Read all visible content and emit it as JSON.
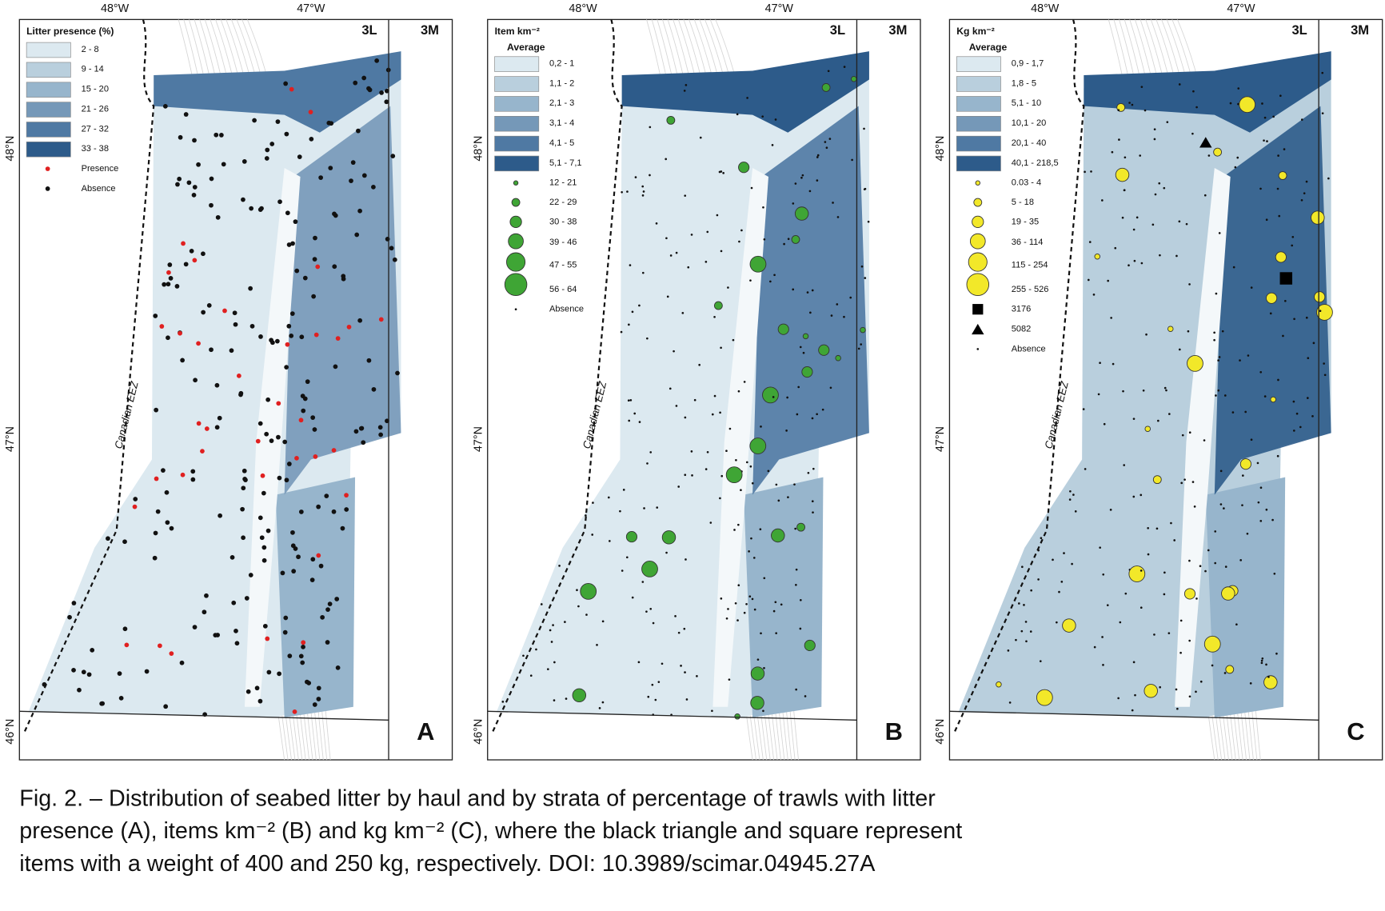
{
  "axes": {
    "lon": [
      "48°W",
      "47°W"
    ],
    "lat": [
      "48°N",
      "47°N",
      "46°N"
    ]
  },
  "zones": [
    "3L",
    "3M"
  ],
  "eez_label": "Canadian EEZ",
  "panels": [
    {
      "label": "A",
      "legend_title": "Litter presence (%)",
      "strata": [
        "2 - 8",
        "9 - 14",
        "15 - 20",
        "21 - 26",
        "27 - 32",
        "33 - 38"
      ],
      "symbols": [
        {
          "label": "Presence",
          "shape": "dot",
          "color": "#e02020"
        },
        {
          "label": "Absence",
          "shape": "dot",
          "color": "#111111"
        }
      ]
    },
    {
      "label": "B",
      "legend_title": "Item km⁻²",
      "legend_subtitle": "Average",
      "strata": [
        "0,2 - 1",
        "1,1 - 2",
        "2,1 - 3",
        "3,1 - 4",
        "4,1 - 5",
        "5,1 - 7,1"
      ],
      "symbols": [
        {
          "label": "12 - 21",
          "shape": "circle",
          "color": "#3fa535"
        },
        {
          "label": "22 - 29",
          "shape": "circle",
          "color": "#3fa535"
        },
        {
          "label": "30 - 38",
          "shape": "circle",
          "color": "#3fa535"
        },
        {
          "label": "39 - 46",
          "shape": "circle",
          "color": "#3fa535"
        },
        {
          "label": "47 - 55",
          "shape": "circle",
          "color": "#3fa535"
        },
        {
          "label": "56 - 64",
          "shape": "circle",
          "color": "#3fa535"
        },
        {
          "label": "Absence",
          "shape": "point",
          "color": "#111111"
        }
      ]
    },
    {
      "label": "C",
      "legend_title": "Kg km⁻²",
      "legend_subtitle": "Average",
      "strata": [
        "0,9 - 1,7",
        "1,8 - 5",
        "5,1 - 10",
        "10,1 - 20",
        "20,1 - 40",
        "40,1 - 218,5"
      ],
      "symbols": [
        {
          "label": "0.03 - 4",
          "shape": "circle",
          "color": "#f2e829"
        },
        {
          "label": "5 - 18",
          "shape": "circle",
          "color": "#f2e829"
        },
        {
          "label": "19 - 35",
          "shape": "circle",
          "color": "#f2e829"
        },
        {
          "label": "36 - 114",
          "shape": "circle",
          "color": "#f2e829"
        },
        {
          "label": "115 - 254",
          "shape": "circle",
          "color": "#f2e829"
        },
        {
          "label": "255 - 526",
          "shape": "circle",
          "color": "#f2e829"
        },
        {
          "label": "3176",
          "shape": "square",
          "color": "#000000"
        },
        {
          "label": "5082",
          "shape": "triangle",
          "color": "#000000"
        },
        {
          "label": "Absence",
          "shape": "point",
          "color": "#111111"
        }
      ]
    }
  ],
  "caption": [
    "Fig. 2. – Distribution of seabed litter by haul and by strata of percentage of trawls with litter",
    "presence (A), items km⁻² (B) and kg km⁻² (C), where the black triangle and square represent",
    "items with a weight of 400 and 250 kg, respectively. DOI: 10.3989/scimar.04945.27A"
  ]
}
